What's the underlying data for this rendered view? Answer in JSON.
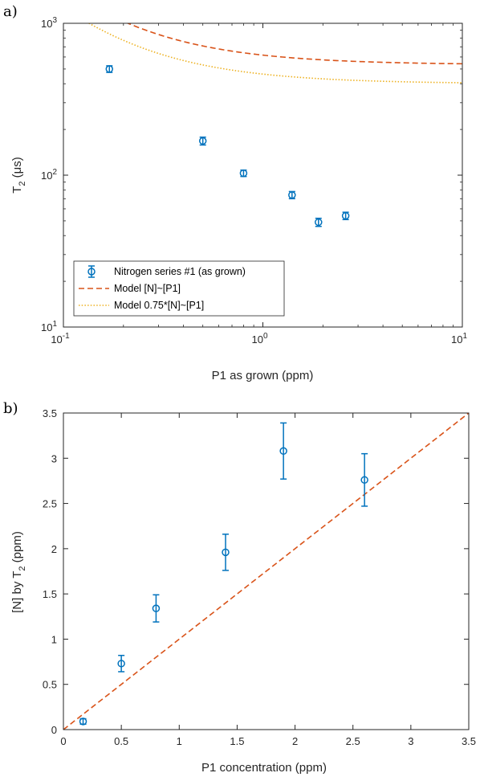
{
  "chart_data": [
    {
      "type": "scatter",
      "panel_label": "a)",
      "xscale": "log",
      "yscale": "log",
      "xlim": [
        0.1,
        10
      ],
      "ylim": [
        10,
        1000
      ],
      "xlabel": "P1 as grown (ppm)",
      "ylabel_main": "T",
      "ylabel_sub": "2",
      "ylabel_unit": " (μs)",
      "xticks": [
        {
          "value": 0.1,
          "base": "10",
          "exp": "-1"
        },
        {
          "value": 1,
          "base": "10",
          "exp": "0"
        },
        {
          "value": 10,
          "base": "10",
          "exp": "1"
        }
      ],
      "yticks": [
        {
          "value": 10,
          "base": "10",
          "exp": "1"
        },
        {
          "value": 100,
          "base": "10",
          "exp": "2"
        },
        {
          "value": 1000,
          "base": "10",
          "exp": "3"
        }
      ],
      "legend_position": "bottom-left",
      "series": [
        {
          "name": "Nitrogen series #1 (as grown)",
          "style": "markers-errorbars",
          "color": "#0072BD",
          "x": [
            0.17,
            0.5,
            0.8,
            1.4,
            1.9,
            2.6
          ],
          "y": [
            500,
            168,
            103,
            74,
            49,
            54
          ],
          "err": [
            25,
            10,
            5,
            4,
            3,
            3
          ]
        },
        {
          "name": "Model [N]~[P1]",
          "style": "dashed",
          "color": "#D95319",
          "model_A": 160,
          "model_B": 0.3
        },
        {
          "name": "Model 0.75*[N]~[P1]",
          "style": "dotted",
          "color": "#EDB120",
          "model_A": 120,
          "model_B": 0.3
        }
      ]
    },
    {
      "type": "scatter",
      "panel_label": "b)",
      "xlim": [
        0,
        3.5
      ],
      "ylim": [
        0,
        3.5
      ],
      "xlabel": "P1 concentration (ppm)",
      "ylabel_main": "[N] by T",
      "ylabel_sub": "2",
      "ylabel_unit": " (ppm)",
      "xticks": [
        "0",
        "0.5",
        "1",
        "1.5",
        "2",
        "2.5",
        "3",
        "3.5"
      ],
      "yticks": [
        "0",
        "0.5",
        "1",
        "1.5",
        "2",
        "2.5",
        "3",
        "3.5"
      ],
      "series": [
        {
          "style": "markers-errorbars",
          "color": "#0072BD",
          "x": [
            0.17,
            0.5,
            0.8,
            1.4,
            1.9,
            2.6
          ],
          "y": [
            0.09,
            0.73,
            1.34,
            1.96,
            3.08,
            2.76
          ],
          "err": [
            0.03,
            0.09,
            0.15,
            0.2,
            0.31,
            0.29
          ]
        },
        {
          "style": "dashed",
          "color": "#D95319",
          "x": [
            0,
            3.5
          ],
          "y": [
            0,
            3.5
          ]
        }
      ]
    }
  ]
}
